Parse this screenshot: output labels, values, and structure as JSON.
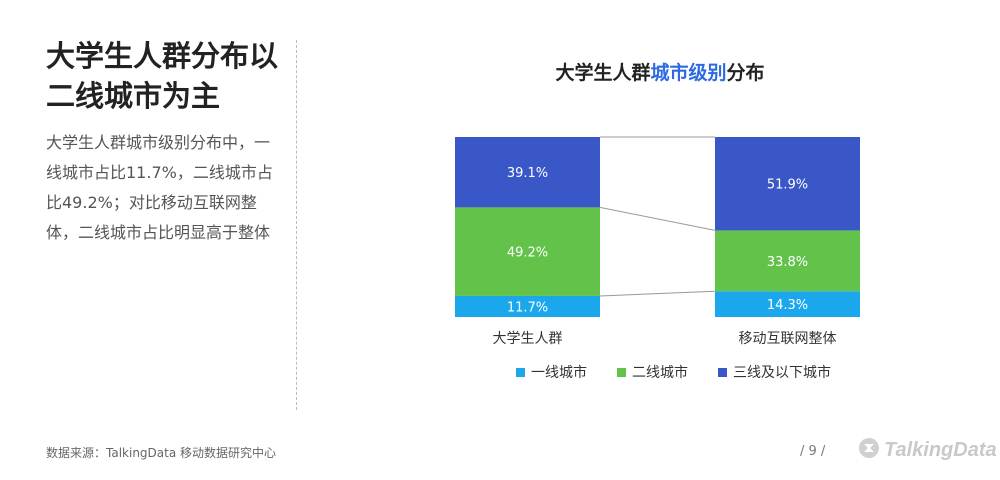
{
  "headline": "大学生人群分布以二线城市为主",
  "summary": "大学生人群城市级别分布中，一线城市占比11.7%，二线城市占比49.2%；对比移动互联网整体，二线城市占比明显高于整体",
  "chart_title": {
    "prefix": "大学生人群",
    "highlight": "城市级别",
    "suffix": "分布"
  },
  "chart_data": {
    "type": "bar",
    "stacked": true,
    "percent": true,
    "categories": [
      "大学生人群",
      "移动互联网整体"
    ],
    "series": [
      {
        "name": "一线城市",
        "color": "#1aa7ec",
        "values": [
          11.7,
          14.3
        ]
      },
      {
        "name": "二线城市",
        "color": "#62c24a",
        "values": [
          49.2,
          33.8
        ]
      },
      {
        "name": "三线及以下城市",
        "color": "#3a57c8",
        "values": [
          39.1,
          51.9
        ]
      }
    ],
    "legend_position": "bottom",
    "ylim": [
      0,
      100
    ],
    "grid": false
  },
  "source": "数据来源：TalkingData 移动数据研究中心",
  "page_number": "/ 9 /",
  "brand": "TalkingData",
  "colors": {
    "accent": "#2e6be0"
  }
}
